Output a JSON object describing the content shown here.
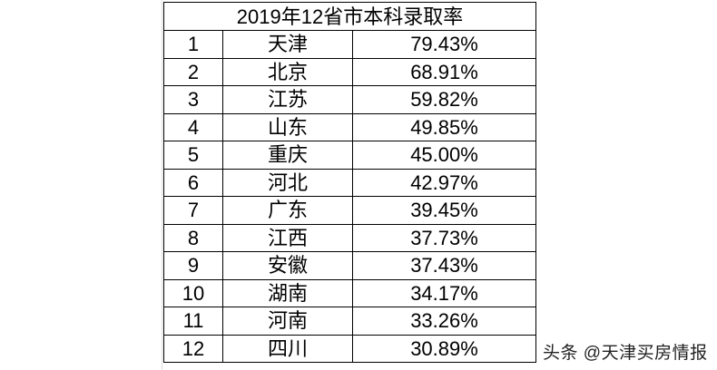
{
  "title": "2019年12省市本科录取率",
  "rows": [
    {
      "rank": "1",
      "province": "天津",
      "rate": "79.43%"
    },
    {
      "rank": "2",
      "province": "北京",
      "rate": "68.91%"
    },
    {
      "rank": "3",
      "province": "江苏",
      "rate": "59.82%"
    },
    {
      "rank": "4",
      "province": "山东",
      "rate": "49.85%"
    },
    {
      "rank": "5",
      "province": "重庆",
      "rate": "45.00%"
    },
    {
      "rank": "6",
      "province": "河北",
      "rate": "42.97%"
    },
    {
      "rank": "7",
      "province": "广东",
      "rate": "39.45%"
    },
    {
      "rank": "8",
      "province": "江西",
      "rate": "37.73%"
    },
    {
      "rank": "9",
      "province": "安徽",
      "rate": "37.43%"
    },
    {
      "rank": "10",
      "province": "湖南",
      "rate": "34.17%"
    },
    {
      "rank": "11",
      "province": "河南",
      "rate": "33.26%"
    },
    {
      "rank": "12",
      "province": "四川",
      "rate": "30.89%"
    }
  ],
  "watermark": "头条 @天津买房情报"
}
